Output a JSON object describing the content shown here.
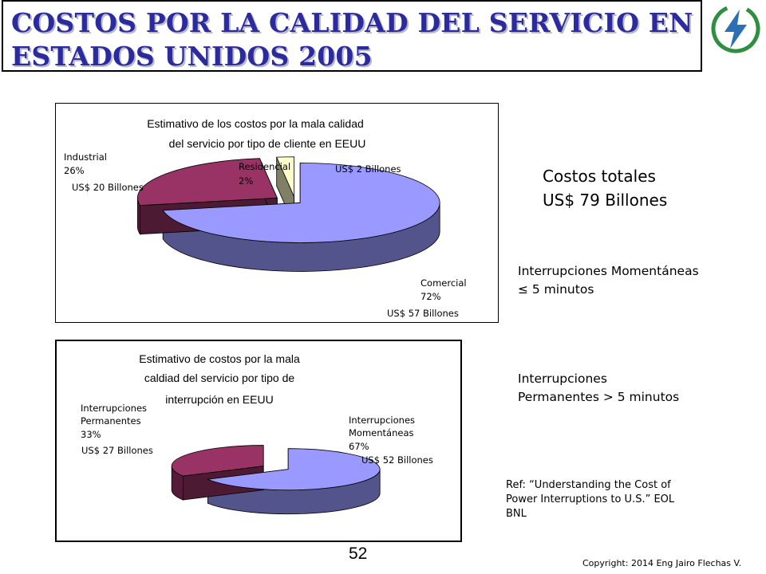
{
  "title": "COSTOS POR LA CALIDAD DEL SERVICIO EN ESTADOS UNIDOS 2005",
  "title_lines": [
    "COSTOS POR LA CALIDAD DEL SERVICIO EN",
    "ESTADOS UNIDOS 2005"
  ],
  "logo_icon": "lightning-bolt-icon",
  "colors": {
    "title": "#2b2b9e",
    "logo": "#2e8f3e",
    "comercial": "#9999ff",
    "industrial": "#993366",
    "residencial": "#ffffcc",
    "border": "#000000"
  },
  "totals": {
    "line1": "Costos totales",
    "line2": "US$ 79 Billones"
  },
  "momentaneas_note": {
    "line1": "Interrupciones Momentáneas",
    "line2": "≤ 5 minutos"
  },
  "permanentes_note": {
    "line1": "Interrupciones",
    "line2": "Permanentes  > 5 minutos"
  },
  "reference": {
    "line1": "Ref: “Understanding the Cost of",
    "line2": "Power Interruptions to U.S.” EOL",
    "line3": "BNL"
  },
  "page_number": "52",
  "copyright": "Copyright: 2014 Eng Jairo Flechas V.",
  "chart_data": [
    {
      "type": "pie",
      "title_lines": [
        "Estimativo de los costos por la mala calidad",
        "del servicio por tipo de cliente en EEUU"
      ],
      "unit": "US$ Billones",
      "slices": [
        {
          "name": "Comercial",
          "percent": 72,
          "value": 57,
          "value_label": "US$ 57 Billones",
          "color": "#9999ff"
        },
        {
          "name": "Industrial",
          "percent": 26,
          "value": 20,
          "value_label": "US$ 20 Billones",
          "color": "#993366"
        },
        {
          "name": "Residencial",
          "percent": 2,
          "value": 2,
          "value_label": "US$ 2 Billones",
          "color": "#ffffcc"
        }
      ]
    },
    {
      "type": "pie",
      "title_lines": [
        "Estimativo de costos por la mala",
        "caldiad del servicio por tipo de",
        "interrupción en EEUU"
      ],
      "unit": "US$ Billones",
      "slices": [
        {
          "name_lines": [
            "Interrupciones",
            "Momentáneas"
          ],
          "percent": 67,
          "value": 52,
          "value_label": "US$ 52 Billones",
          "color": "#9999ff"
        },
        {
          "name_lines": [
            "Interrupciones",
            "Permanentes"
          ],
          "percent": 33,
          "value": 27,
          "value_label": "US$ 27 Billones",
          "color": "#993366"
        }
      ]
    }
  ]
}
